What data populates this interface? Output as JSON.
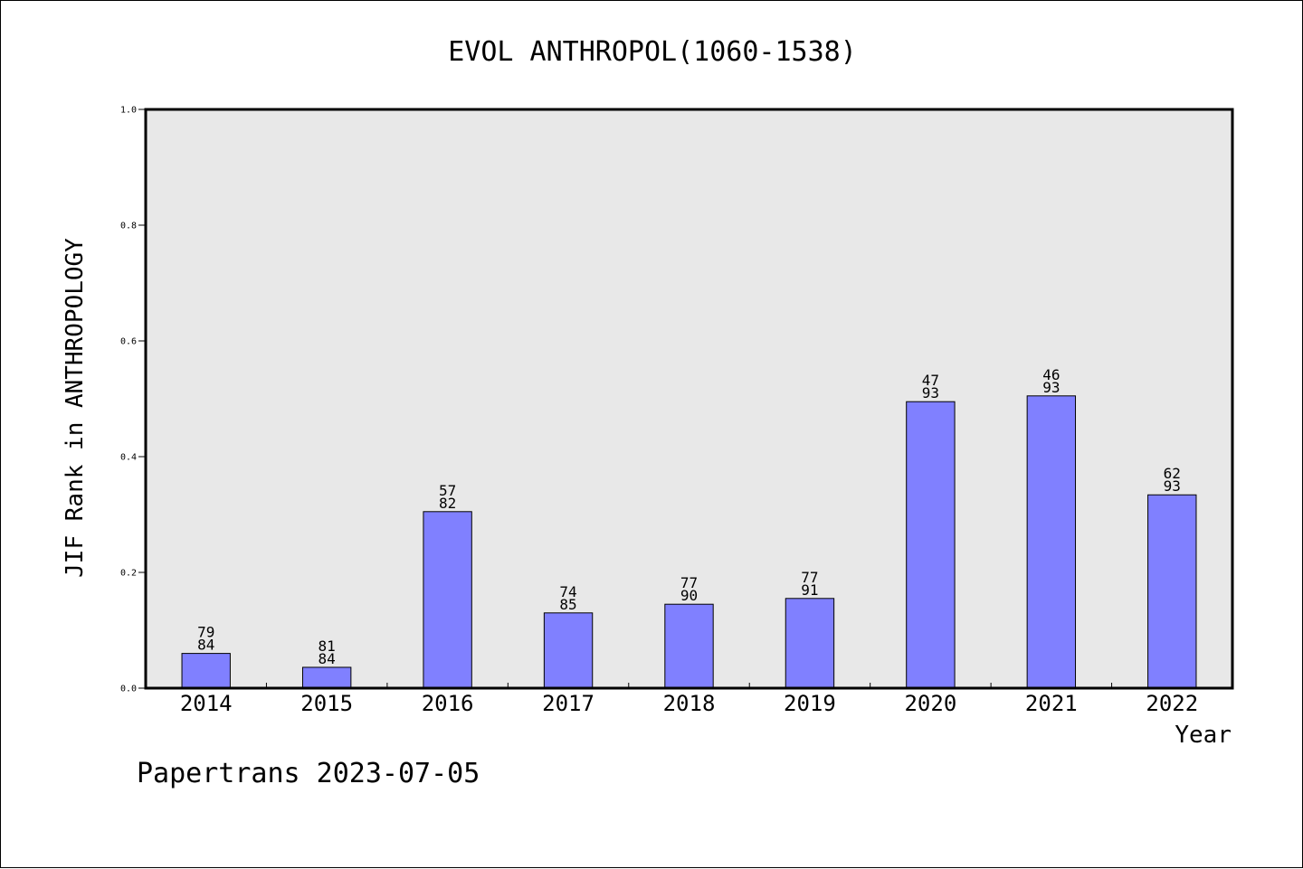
{
  "chart_data": {
    "type": "bar",
    "title": "EVOL ANTHROPOL(1060-1538)",
    "xlabel": "Year",
    "ylabel": "JIF Rank in ANTHROPOLOGY",
    "ylim": [
      0,
      1.0
    ],
    "yticks": [
      "0.0",
      "0.2",
      "0.4",
      "0.6",
      "0.8",
      "1.0"
    ],
    "categories": [
      "2014",
      "2015",
      "2016",
      "2017",
      "2018",
      "2019",
      "2020",
      "2021",
      "2022"
    ],
    "values": [
      0.06,
      0.036,
      0.305,
      0.13,
      0.145,
      0.155,
      0.495,
      0.505,
      0.334
    ],
    "bar_labels": [
      [
        "79",
        "84"
      ],
      [
        "81",
        "84"
      ],
      [
        "57",
        "82"
      ],
      [
        "74",
        "85"
      ],
      [
        "77",
        "90"
      ],
      [
        "77",
        "91"
      ],
      [
        "47",
        "93"
      ],
      [
        "46",
        "93"
      ],
      [
        "62",
        "93"
      ]
    ],
    "grid": false,
    "colors": {
      "bar": "#8080ff",
      "plot_background": "#e8e8e8"
    }
  },
  "footer": {
    "text": "Papertrans 2023-07-05"
  }
}
